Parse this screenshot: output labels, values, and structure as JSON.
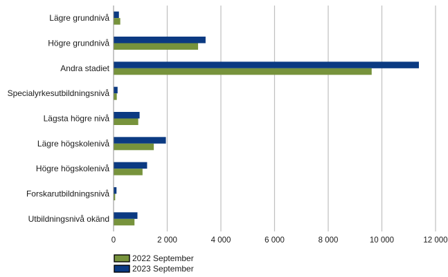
{
  "chart_data": {
    "type": "bar",
    "orientation": "horizontal",
    "categories": [
      "Lägre grundnivå",
      "Högre grundnivå",
      "Andra stadiet",
      "Specialyrkesutbildningsnivå",
      "Lägsta högre nivå",
      "Lägre högskolenivå",
      "Högre högskolenivå",
      "Forskarutbildningsnivå",
      "Utbildningsnivå okänd"
    ],
    "series": [
      {
        "name": "2022 September",
        "color": "#77933c",
        "values": [
          250,
          3150,
          9620,
          120,
          920,
          1500,
          1080,
          60,
          780
        ]
      },
      {
        "name": "2023 September",
        "color": "#0b3a82",
        "values": [
          200,
          3430,
          11380,
          150,
          970,
          1950,
          1250,
          110,
          890
        ]
      }
    ],
    "xlim": [
      0,
      12000
    ],
    "x_ticks": [
      0,
      2000,
      4000,
      6000,
      8000,
      10000,
      12000
    ],
    "x_tick_labels": [
      "0",
      "2 000",
      "4 000",
      "6 000",
      "8 000",
      "10 000",
      "12 000"
    ],
    "grid": "vertical",
    "legend_position": "bottom-left",
    "title": "",
    "xlabel": "",
    "ylabel": ""
  }
}
